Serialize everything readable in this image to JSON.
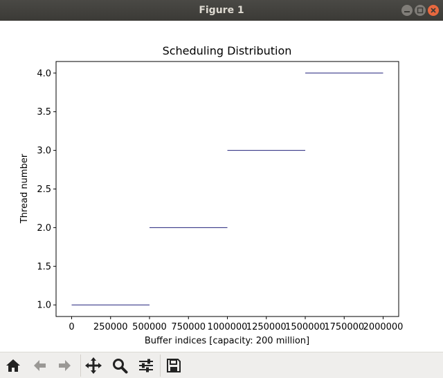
{
  "window": {
    "title": "Figure 1"
  },
  "toolbar": {
    "icons": [
      "home-icon",
      "back-arrow-icon",
      "forward-arrow-icon",
      "pan-icon",
      "zoom-icon",
      "configure-subplots-icon",
      "save-icon"
    ]
  },
  "chart_data": {
    "type": "line",
    "title": "Scheduling Distribution",
    "xlabel": "Buffer indices [capacity: 200 million]",
    "ylabel": "Thread number",
    "xlim": [
      -100000,
      2100000
    ],
    "ylim": [
      0.85,
      4.15
    ],
    "xticks": [
      0,
      250000,
      500000,
      750000,
      1000000,
      1250000,
      1500000,
      1750000,
      2000000
    ],
    "xtick_labels": [
      "0",
      "250000",
      "500000",
      "750000",
      "1000000",
      "1250000",
      "1500000",
      "1750000",
      "2000000"
    ],
    "yticks": [
      1.0,
      1.5,
      2.0,
      2.5,
      3.0,
      3.5,
      4.0
    ],
    "ytick_labels": [
      "1.0",
      "1.5",
      "2.0",
      "2.5",
      "3.0",
      "3.5",
      "4.0"
    ],
    "grid": false,
    "color": "#1f1f7a",
    "segments": [
      {
        "x": [
          0,
          500000
        ],
        "y": [
          1,
          1
        ]
      },
      {
        "x": [
          500000,
          1000000
        ],
        "y": [
          2,
          2
        ]
      },
      {
        "x": [
          1000000,
          1500000
        ],
        "y": [
          3,
          3
        ]
      },
      {
        "x": [
          1500000,
          2000000
        ],
        "y": [
          4,
          4
        ]
      }
    ]
  }
}
